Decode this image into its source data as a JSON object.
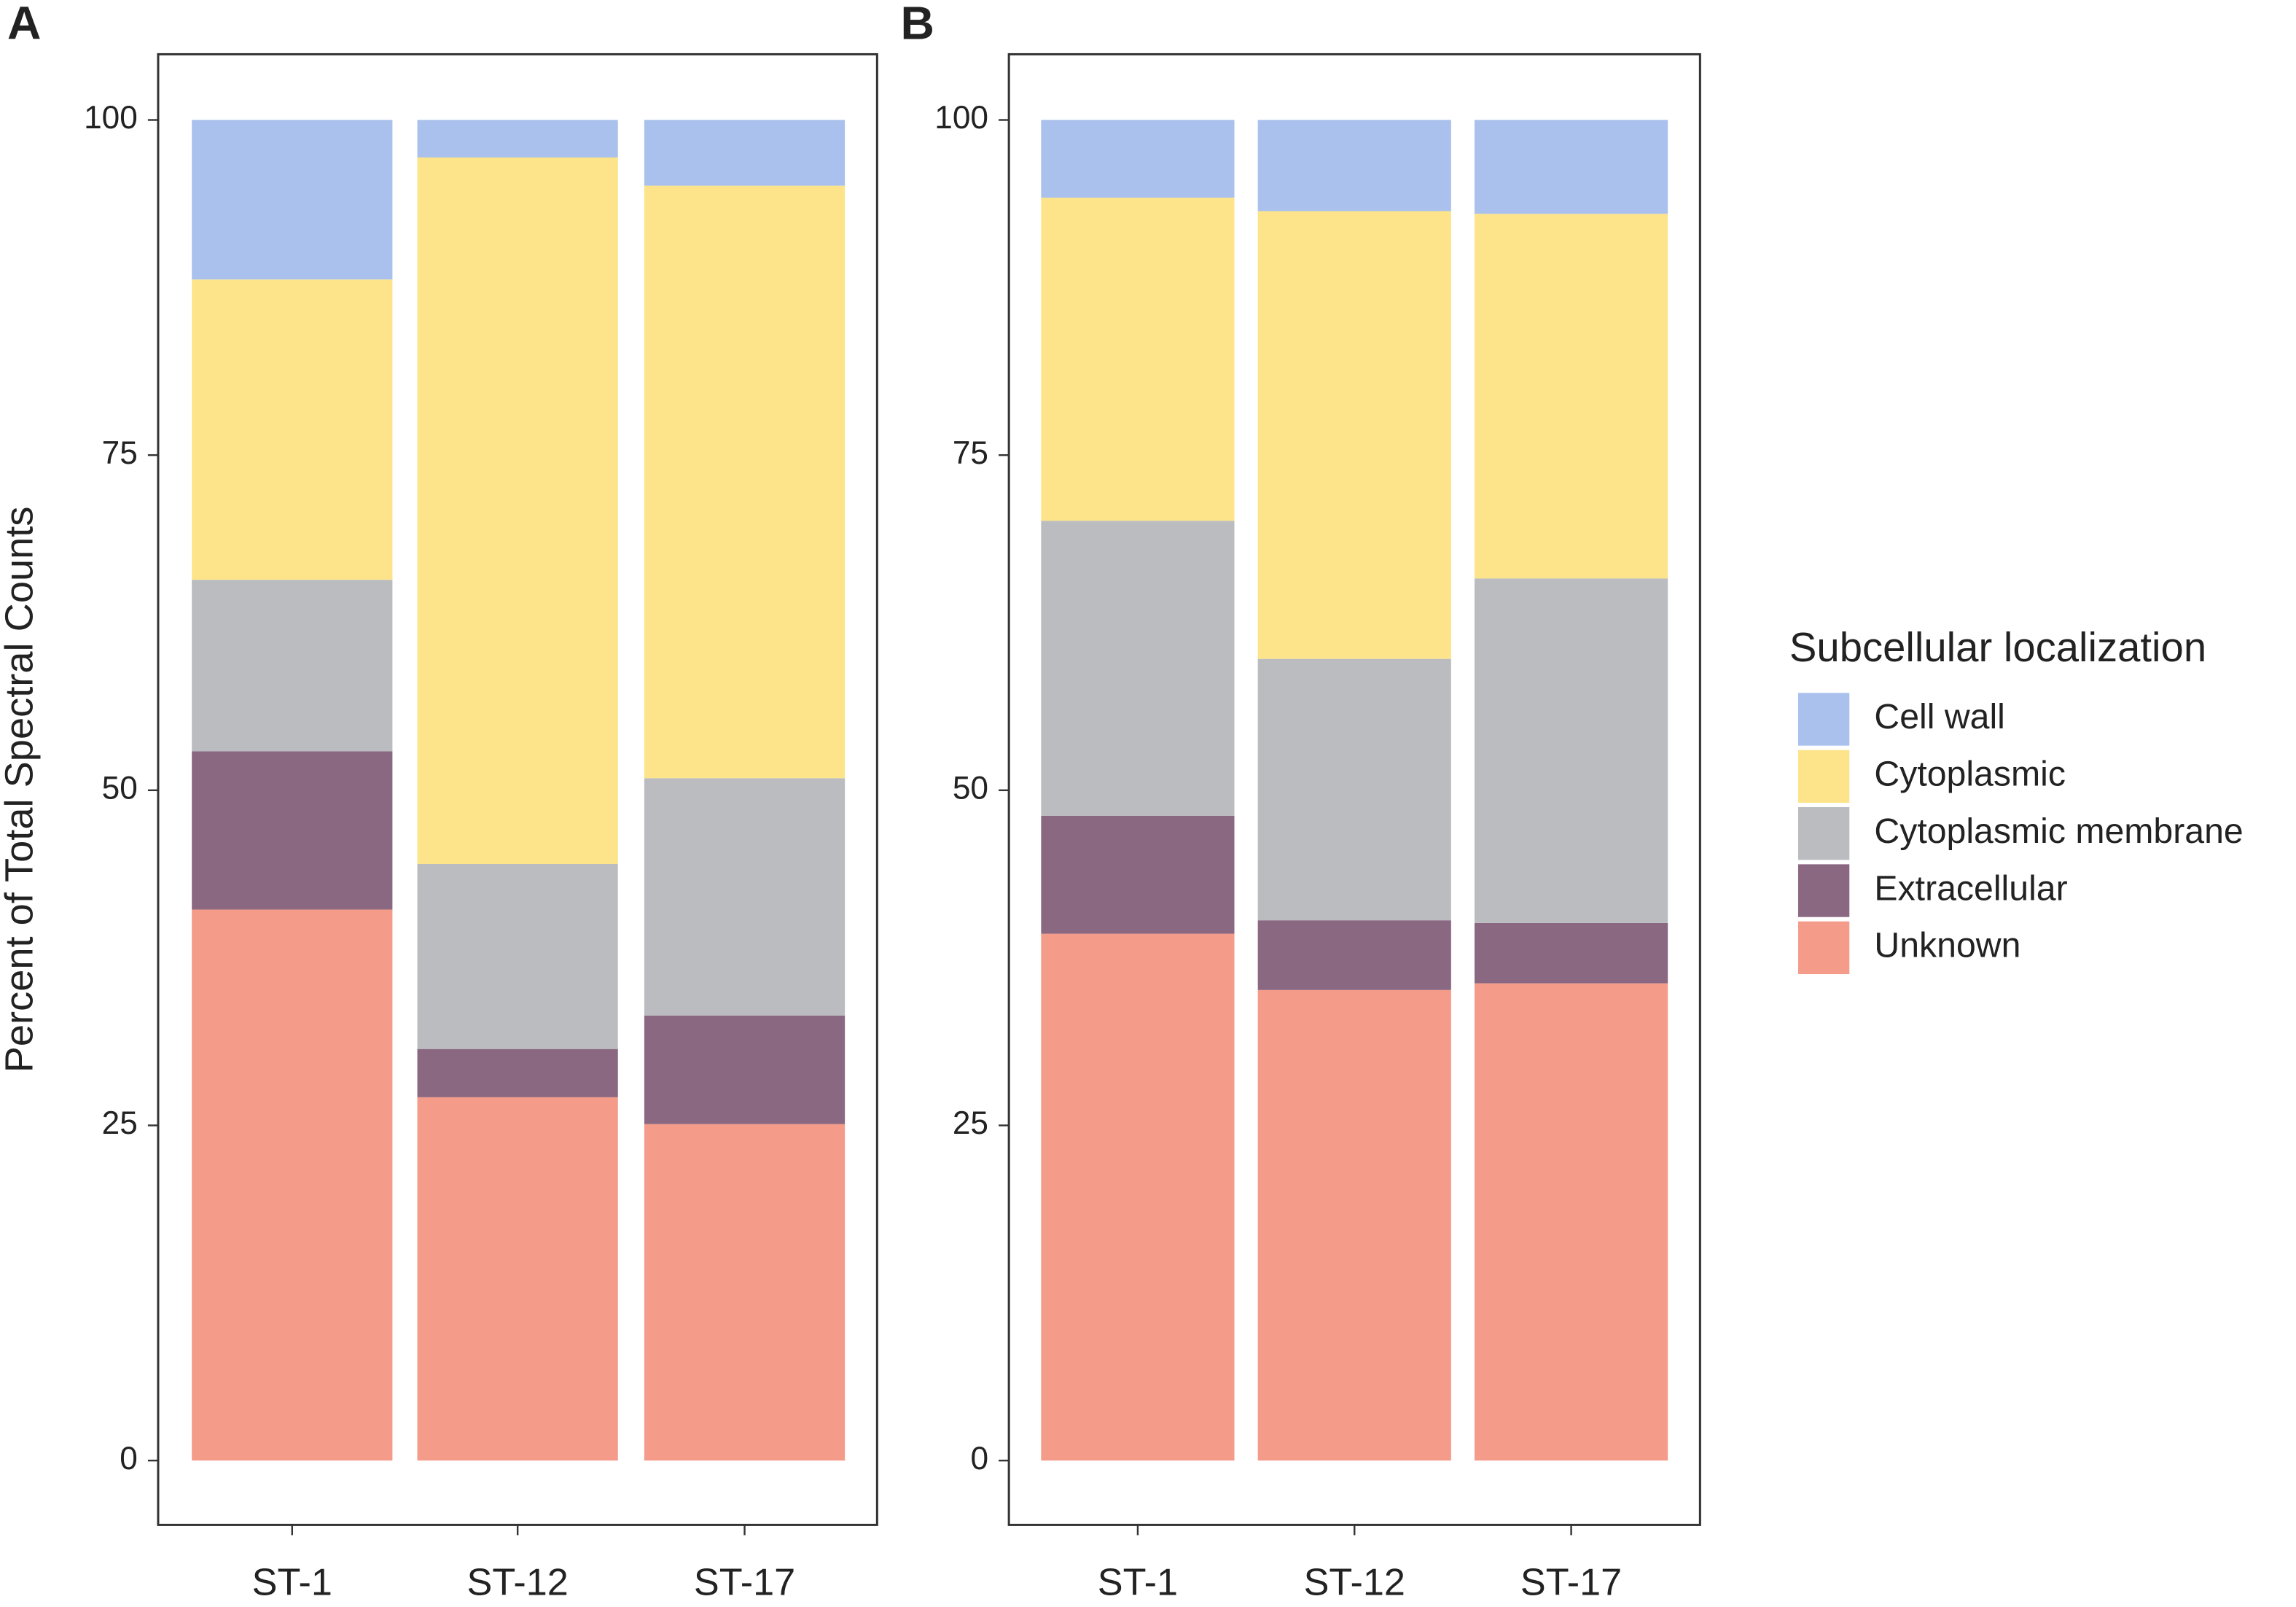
{
  "chart_data": [
    {
      "type": "bar",
      "stacked": true,
      "panel_label": "A",
      "ylabel": "Percent of Total Spectral Counts",
      "categories": [
        "ST-1",
        "ST-12",
        "ST-17"
      ],
      "series": [
        {
          "name": "Cell wall",
          "color": "#a9c1ec",
          "values": [
            11.9,
            2.8,
            4.9
          ]
        },
        {
          "name": "Cytoplasmic",
          "color": "#fde48a",
          "values": [
            22.4,
            52.7,
            44.2
          ]
        },
        {
          "name": "Cytoplasmic membrane",
          "color": "#babcc0",
          "values": [
            12.8,
            13.8,
            17.7
          ]
        },
        {
          "name": "Extracellular",
          "color": "#8a6882",
          "values": [
            11.8,
            3.6,
            8.1
          ]
        },
        {
          "name": "Unknown",
          "color": "#f49b89",
          "values": [
            41.1,
            27.1,
            25.1
          ]
        }
      ],
      "ylim": [
        -4.8,
        104.9
      ],
      "yticks": [
        0,
        25,
        50,
        75,
        100
      ]
    },
    {
      "type": "bar",
      "stacked": true,
      "panel_label": "B",
      "legend_title": "Subcellular localization",
      "legend": "right",
      "categories": [
        "ST-1",
        "ST-12",
        "ST-17"
      ],
      "series": [
        {
          "name": "Cell wall",
          "color": "#a9c1ec",
          "values": [
            5.8,
            6.8,
            7.0
          ]
        },
        {
          "name": "Cytoplasmic",
          "color": "#fde48a",
          "values": [
            24.1,
            33.4,
            27.2
          ]
        },
        {
          "name": "Cytoplasmic membrane",
          "color": "#babcc0",
          "values": [
            22.0,
            19.5,
            25.7
          ]
        },
        {
          "name": "Extracellular",
          "color": "#8a6882",
          "values": [
            8.8,
            5.2,
            4.5
          ]
        },
        {
          "name": "Unknown",
          "color": "#f49b89",
          "values": [
            39.3,
            35.1,
            35.6
          ]
        }
      ],
      "ylim": [
        -4.8,
        104.9
      ],
      "yticks": [
        0,
        25,
        50,
        75,
        100
      ]
    }
  ]
}
